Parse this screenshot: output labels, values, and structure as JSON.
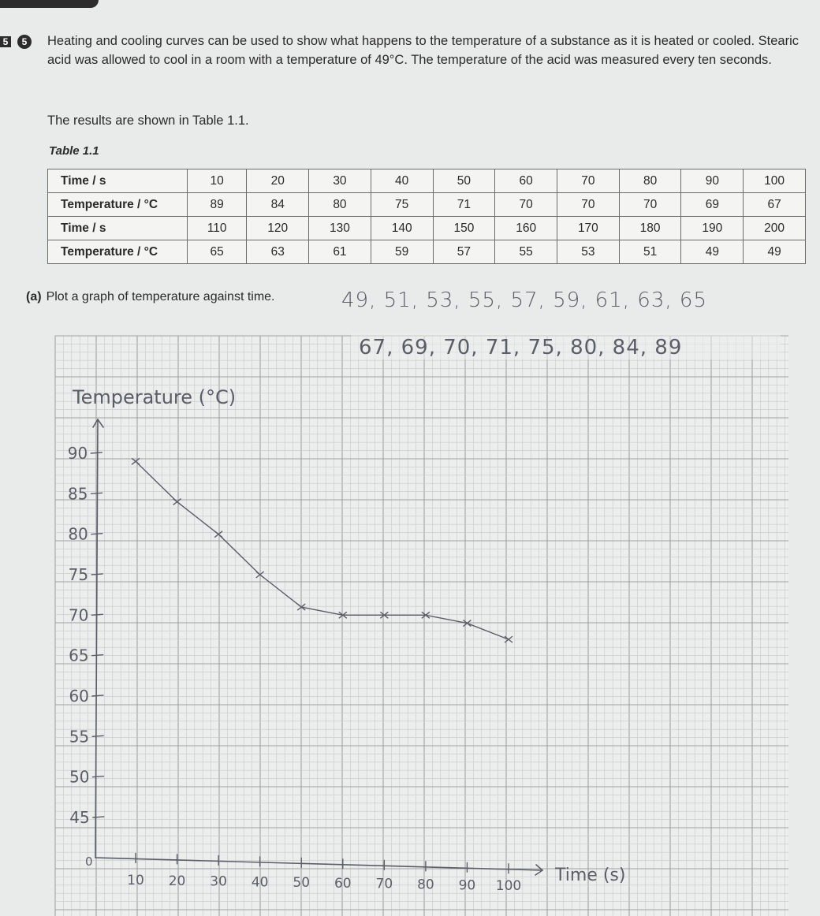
{
  "question": {
    "box_number": "5",
    "circle_number": "5",
    "paragraph1": "Heating and cooling curves can be used to show what happens to the temperature of a substance as it is heated or cooled. Stearic acid was allowed to cool in a room with a temperature of 49°C. The temperature of the acid was measured every ten seconds.",
    "paragraph2": "The results are shown in Table 1.1."
  },
  "table": {
    "caption": "Table 1.1",
    "rows": [
      {
        "label": "Time / s",
        "values": [
          "10",
          "20",
          "30",
          "40",
          "50",
          "60",
          "70",
          "80",
          "90",
          "100"
        ]
      },
      {
        "label": "Temperature / °C",
        "values": [
          "89",
          "84",
          "80",
          "75",
          "71",
          "70",
          "70",
          "70",
          "69",
          "67"
        ]
      },
      {
        "label": "Time / s",
        "values": [
          "110",
          "120",
          "130",
          "140",
          "150",
          "160",
          "170",
          "180",
          "190",
          "200"
        ]
      },
      {
        "label": "Temperature / °C",
        "values": [
          "65",
          "63",
          "61",
          "59",
          "57",
          "55",
          "53",
          "51",
          "49",
          "49"
        ]
      }
    ]
  },
  "part_a": {
    "label": "(a)",
    "text": "Plot a graph of temperature against time."
  },
  "handwriting": {
    "line1": "49, 51, 53, 55, 57, 59, 61, 63, 65",
    "line2": "67, 69, 70, 71, 75, 80, 84, 89"
  },
  "chart_data": {
    "type": "line",
    "ylabel": "Temperature (°C)",
    "xlabel": "Time (s)",
    "origin_label": "0",
    "x_ticks": [
      "10",
      "20",
      "30",
      "40",
      "50",
      "60",
      "70",
      "80",
      "90",
      "100"
    ],
    "y_ticks": [
      "90",
      "85",
      "80",
      "75",
      "70",
      "65",
      "60",
      "55",
      "50",
      "45"
    ],
    "x": [
      10,
      20,
      30,
      40,
      50,
      60,
      70,
      80,
      90,
      100
    ],
    "y": [
      89,
      84,
      80,
      75,
      71,
      70,
      70,
      70,
      69,
      67
    ],
    "xlim": [
      0,
      100
    ],
    "ylim": [
      40,
      90
    ],
    "grid": true,
    "colors": {
      "line": "#5a5e66",
      "grid_minor": "#c6c8c9",
      "grid_major": "#9fa2a4",
      "paper": "#eceded"
    }
  }
}
